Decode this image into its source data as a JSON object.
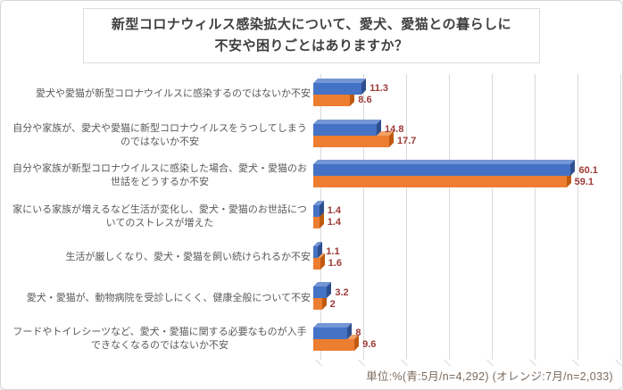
{
  "title": {
    "line1": "新型コロナウィルス感染拡大について、愛犬、愛猫との暮らしに",
    "line2": "不安や困りごとはありますか？"
  },
  "footer": {
    "note": "単位:%(青:5月/n=4,292) (オレンジ:7月/n=2,033)"
  },
  "colors": {
    "frame_border": "#d7d7d7",
    "title_border": "#dcdcdc",
    "title_color": "#3f3f3f",
    "blue": "#4472c4",
    "blue_top": "#7396d6",
    "blue_side": "#2e4f8e",
    "orange": "#ed7d31",
    "orange_top": "#f2a266",
    "orange_side": "#c05a11",
    "data_label": "#9c3a36",
    "gridline": "#d9d9d9",
    "category_label": "#595959",
    "footer_color": "#7b6b60"
  },
  "chart_data": {
    "type": "bar",
    "orientation": "horizontal",
    "style": "3d",
    "unit": "%",
    "title": "新型コロナウィルス感染拡大について、愛犬、愛猫との暮らしに不安や困りごとはありますか？",
    "categories": [
      "愛犬や愛猫が新型コロナウイルスに感染するのではないか不安",
      "自分や家族が、愛犬や愛猫に新型コロナウイルスをうつしてしまうのではないか不安",
      "自分や家族が新型コロナウイルスに感染した場合、愛犬・愛猫のお世話をどうするか不安",
      "家にいる家族が増えるなど生活が変化し、愛犬・愛猫のお世話についてのストレスが増えた",
      "生活が厳しくなり、愛犬・愛猫を飼い続けられるか不安",
      "愛犬・愛猫が、動物病院を受診しにくく、健康全般について不安",
      "フードやトイレシーツなど、愛犬・愛猫に関する必要なものが入手できなくなるのではないか不安"
    ],
    "series": [
      {
        "name": "青:5月/n=4,292",
        "color": "#4472c4",
        "values": [
          11.3,
          14.8,
          60.1,
          1.4,
          1.1,
          3.2,
          8
        ]
      },
      {
        "name": "オレンジ:7月/n=2,033",
        "color": "#ed7d31",
        "values": [
          8.6,
          17.7,
          59.1,
          1.4,
          1.6,
          2,
          9.6
        ]
      }
    ],
    "value_labels": [
      [
        "11.3",
        "8.6"
      ],
      [
        "14.8",
        "17.7"
      ],
      [
        "60.1",
        "59.1"
      ],
      [
        "1.4",
        "1.4"
      ],
      [
        "1.1",
        "1.6"
      ],
      [
        "3.2",
        "2"
      ],
      [
        "8",
        "9.6"
      ]
    ],
    "xlim": [
      0,
      70
    ],
    "gridline_interval": 10,
    "grid": true,
    "legend": "none"
  }
}
